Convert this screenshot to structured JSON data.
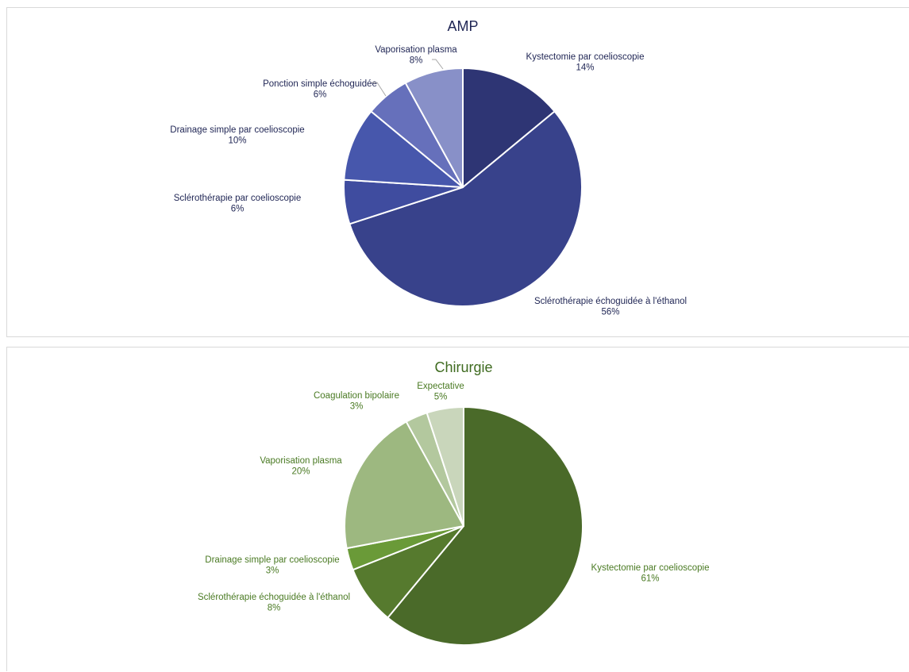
{
  "chart_data": [
    {
      "type": "pie",
      "title": "AMP",
      "colors": {
        "title": "#1f2554",
        "labels": "#1f2554"
      },
      "slices": [
        {
          "label": "Kystectomie par coelioscopie",
          "pct_label": "14%",
          "value": 14,
          "color": "#2e3574"
        },
        {
          "label": "Sclérothérapie échoguidée à l'éthanol",
          "pct_label": "56%",
          "value": 56,
          "color": "#38428b"
        },
        {
          "label": "Sclérothérapie par coelioscopie",
          "pct_label": "6%",
          "value": 6,
          "color": "#3f4c9f"
        },
        {
          "label": "Drainage simple par coelioscopie",
          "pct_label": "10%",
          "value": 10,
          "color": "#4757ac"
        },
        {
          "label": "Ponction simple échoguidée",
          "pct_label": "6%",
          "value": 6,
          "color": "#6670bb"
        },
        {
          "label": "Vaporisation plasma",
          "pct_label": "8%",
          "value": 8,
          "color": "#8890c8"
        }
      ]
    },
    {
      "type": "pie",
      "title": "Chirurgie",
      "colors": {
        "title": "#3f6b20",
        "labels": "#4a7a23"
      },
      "slices": [
        {
          "label": "Kystectomie par coelioscopie",
          "pct_label": "61%",
          "value": 61,
          "color": "#4a6a29"
        },
        {
          "label": "Sclérothérapie échoguidée à l'éthanol",
          "pct_label": "8%",
          "value": 8,
          "color": "#567a2e"
        },
        {
          "label": "Drainage simple par coelioscopie",
          "pct_label": "3%",
          "value": 3,
          "color": "#6a9a38"
        },
        {
          "label": "Vaporisation plasma",
          "pct_label": "20%",
          "value": 20,
          "color": "#9db880"
        },
        {
          "label": "Coagulation bipolaire",
          "pct_label": "3%",
          "value": 3,
          "color": "#b3c89e"
        },
        {
          "label": "Expectative",
          "pct_label": "5%",
          "value": 5,
          "color": "#c9d6bb"
        }
      ]
    }
  ]
}
